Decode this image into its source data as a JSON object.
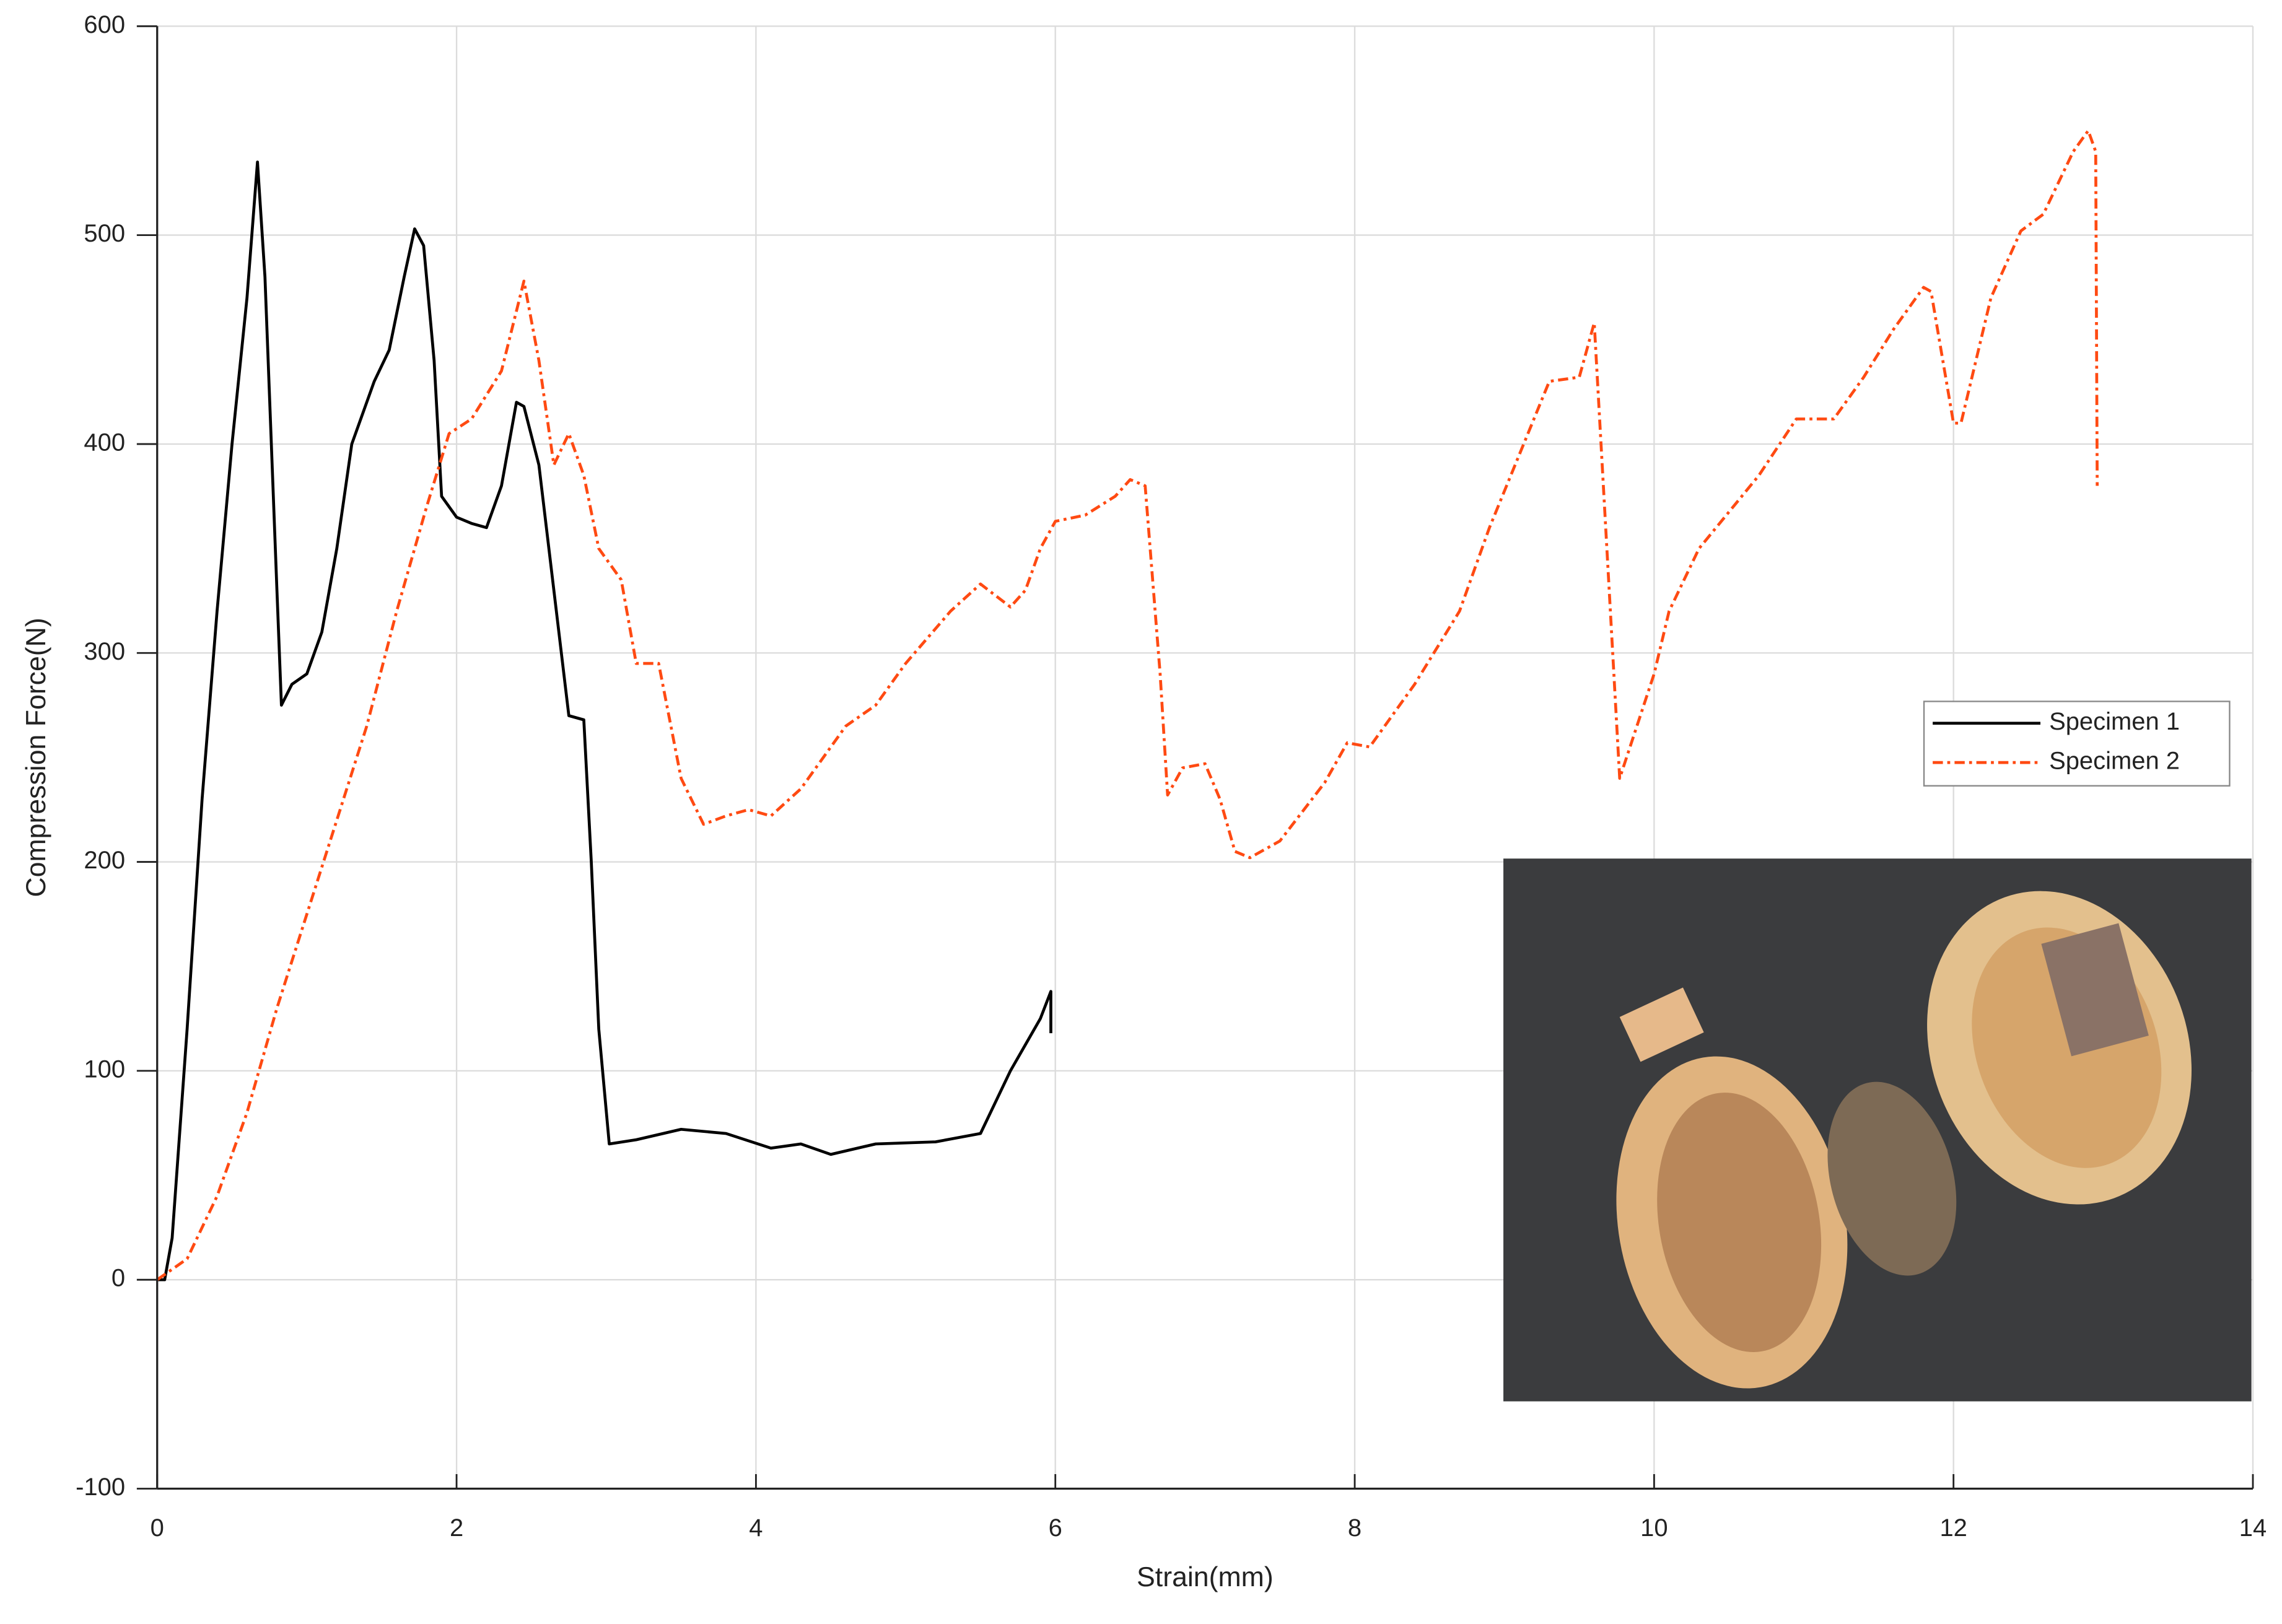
{
  "chart_data": {
    "type": "line",
    "xlabel": "Strain(mm)",
    "ylabel": "Compression Force(N)",
    "xlim": [
      0,
      14
    ],
    "xticks": [
      0,
      2,
      4,
      6,
      8,
      10,
      12,
      14
    ],
    "ylim": [
      -100,
      600
    ],
    "yticks": [
      -100,
      0,
      100,
      200,
      300,
      400,
      500,
      600
    ],
    "grid": true,
    "legend": "right",
    "series": [
      {
        "name": "Specimen 1",
        "color": "#000000",
        "linestyle": "solid",
        "x": [
          0,
          0.05,
          0.1,
          0.2,
          0.3,
          0.4,
          0.5,
          0.6,
          0.67,
          0.72,
          0.8,
          0.83,
          0.9,
          1.0,
          1.1,
          1.2,
          1.3,
          1.45,
          1.55,
          1.65,
          1.72,
          1.78,
          1.85,
          1.9,
          2.0,
          2.1,
          2.2,
          2.3,
          2.4,
          2.45,
          2.55,
          2.65,
          2.75,
          2.85,
          2.9,
          2.95,
          3.02,
          3.2,
          3.5,
          3.8,
          4.1,
          4.3,
          4.5,
          4.8,
          5.2,
          5.5,
          5.7,
          5.9,
          5.97,
          5.97
        ],
        "values": [
          0,
          0,
          20,
          120,
          230,
          320,
          400,
          470,
          535,
          480,
          330,
          275,
          285,
          290,
          310,
          350,
          400,
          430,
          445,
          480,
          503,
          495,
          440,
          375,
          365,
          362,
          360,
          380,
          420,
          418,
          390,
          330,
          270,
          268,
          200,
          120,
          65,
          67,
          72,
          70,
          63,
          65,
          60,
          65,
          66,
          70,
          100,
          125,
          138,
          118
        ]
      },
      {
        "name": "Specimen 2",
        "color": "#ff4a12",
        "linestyle": "dashdot",
        "x": [
          0,
          0.2,
          0.4,
          0.6,
          0.8,
          1.0,
          1.2,
          1.4,
          1.6,
          1.8,
          1.95,
          2.1,
          2.3,
          2.45,
          2.55,
          2.65,
          2.75,
          2.85,
          2.95,
          3.1,
          3.2,
          3.35,
          3.5,
          3.65,
          3.8,
          3.95,
          4.1,
          4.3,
          4.6,
          4.8,
          5.0,
          5.3,
          5.5,
          5.7,
          5.8,
          5.9,
          6.0,
          6.2,
          6.4,
          6.5,
          6.6,
          6.7,
          6.75,
          6.85,
          7.0,
          7.1,
          7.2,
          7.3,
          7.5,
          7.8,
          7.95,
          8.1,
          8.4,
          8.7,
          8.9,
          9.1,
          9.3,
          9.5,
          9.6,
          9.7,
          9.77,
          10.0,
          10.1,
          10.3,
          10.7,
          10.95,
          11.2,
          11.4,
          11.6,
          11.8,
          11.85,
          12.0,
          12.05,
          12.25,
          12.45,
          12.6,
          12.8,
          12.9,
          12.95,
          12.96
        ],
        "values": [
          0,
          10,
          40,
          80,
          130,
          175,
          220,
          265,
          320,
          370,
          405,
          412,
          435,
          478,
          440,
          390,
          405,
          385,
          350,
          335,
          295,
          295,
          240,
          218,
          222,
          225,
          222,
          235,
          265,
          275,
          295,
          320,
          333,
          322,
          330,
          350,
          363,
          366,
          375,
          383,
          380,
          290,
          232,
          245,
          247,
          230,
          205,
          202,
          210,
          238,
          257,
          255,
          285,
          320,
          360,
          395,
          430,
          432,
          458,
          330,
          240,
          290,
          320,
          350,
          385,
          412,
          412,
          432,
          455,
          475,
          473,
          410,
          410,
          470,
          502,
          510,
          540,
          550,
          540,
          380
        ]
      }
    ]
  }
}
